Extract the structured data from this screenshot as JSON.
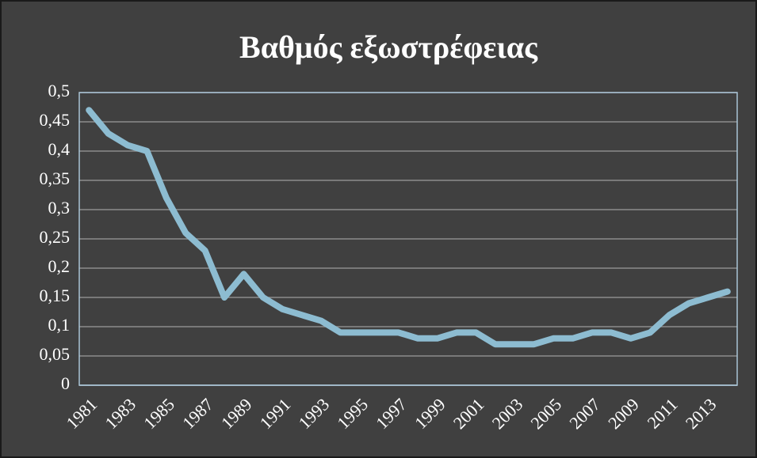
{
  "chart_data": {
    "type": "line",
    "title": "Βαθμός εξωστρέφειας",
    "categories": [
      "1981",
      null,
      "1983",
      null,
      "1985",
      null,
      "1987",
      null,
      "1989",
      null,
      "1991",
      null,
      "1993",
      null,
      "1995",
      null,
      "1997",
      null,
      "1999",
      null,
      "2001",
      null,
      "2003",
      null,
      "2005",
      null,
      "2007",
      null,
      "2009",
      null,
      "2011",
      null,
      "2013",
      null
    ],
    "series": [
      {
        "name": "Βαθμός εξωστρέφειας",
        "color": "#8dbcd1",
        "values": [
          0.47,
          0.43,
          0.41,
          0.4,
          0.32,
          0.26,
          0.23,
          0.15,
          0.19,
          0.15,
          0.13,
          0.12,
          0.11,
          0.09,
          0.09,
          0.09,
          0.09,
          0.08,
          0.08,
          0.09,
          0.09,
          0.07,
          0.07,
          0.07,
          0.08,
          0.08,
          0.09,
          0.09,
          0.08,
          0.09,
          0.12,
          0.14,
          0.15,
          0.16
        ]
      }
    ],
    "ylim": [
      0,
      0.5
    ],
    "yticks": [
      0,
      {
        "value": 0.05,
        "label": "0,05"
      },
      {
        "value": 0.1,
        "label": "0,1"
      },
      {
        "value": 0.15,
        "label": "0,15"
      },
      {
        "value": 0.2,
        "label": "0,2"
      },
      {
        "value": 0.25,
        "label": "0,25"
      },
      {
        "value": 0.3,
        "label": "0,3"
      },
      {
        "value": 0.35,
        "label": "0,35"
      },
      {
        "value": 0.4,
        "label": "0,4"
      },
      {
        "value": 0.45,
        "label": "0,45"
      },
      {
        "value": 0.5,
        "label": "0,5"
      }
    ],
    "grid": true
  }
}
